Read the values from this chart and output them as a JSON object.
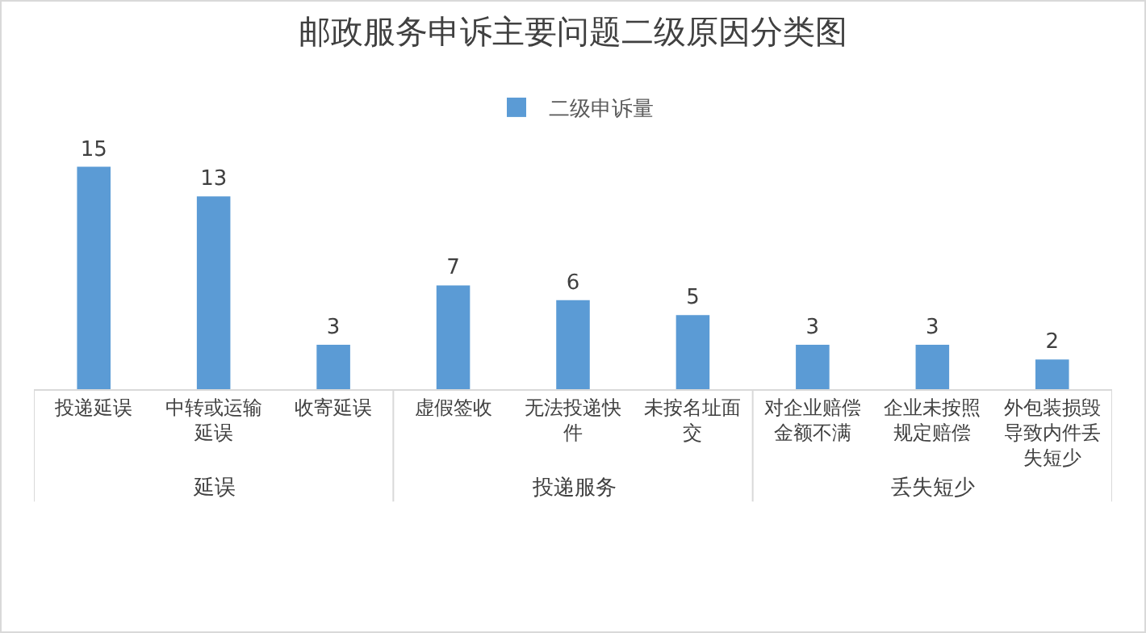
{
  "chart_data": {
    "type": "bar",
    "title": "邮政服务申诉主要问题二级原因分类图",
    "categories": [
      "投递延误",
      "中转或运输延误",
      "收寄延误",
      "虚假签收",
      "无法投递快件",
      "未按名址面交",
      "对企业赔偿金额不满",
      "企业未按照规定赔偿",
      "外包装损毁导致内件丢失短少"
    ],
    "series": [
      {
        "name": "二级申诉量",
        "color": "#5b9bd5",
        "values": [
          15,
          13,
          3,
          7,
          6,
          5,
          3,
          3,
          2
        ]
      }
    ],
    "data_labels": true,
    "legend": "top",
    "annotations": [
      "延误",
      "投递服务",
      "丢失短少"
    ]
  }
}
